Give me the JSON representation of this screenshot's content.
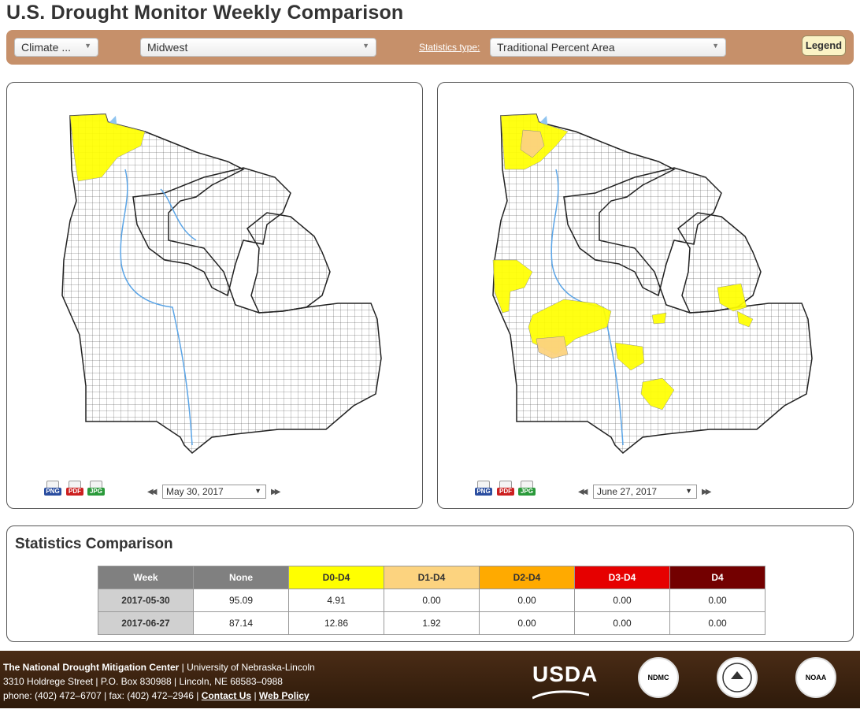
{
  "page": {
    "title": "U.S. Drought Monitor Weekly Comparison"
  },
  "toolbar": {
    "region_type": "Climate ...",
    "region": "Midwest",
    "stats_label": "Statistics type",
    "stats_colon": ":",
    "stats_type": "Traditional Percent Area",
    "legend_label": "Legend"
  },
  "left_map": {
    "date": "May 30, 2017",
    "downloads": [
      "PNG",
      "PDF",
      "JPG"
    ]
  },
  "right_map": {
    "date": "June 27, 2017",
    "downloads": [
      "PNG",
      "PDF",
      "JPG"
    ]
  },
  "colors": {
    "D0": "#ffff00",
    "D1": "#fcd37f",
    "D2": "#ffaa00",
    "D3": "#e60000",
    "D4": "#730000",
    "none": "#808080",
    "water": "#8fc4f0",
    "toolbar": "#c6906a"
  },
  "stats": {
    "title": "Statistics Comparison",
    "headers": [
      "Week",
      "None",
      "D0-D4",
      "D1-D4",
      "D2-D4",
      "D3-D4",
      "D4"
    ],
    "rows": [
      [
        "2017-05-30",
        "95.09",
        "4.91",
        "0.00",
        "0.00",
        "0.00",
        "0.00"
      ],
      [
        "2017-06-27",
        "87.14",
        "12.86",
        "1.92",
        "0.00",
        "0.00",
        "0.00"
      ]
    ]
  },
  "footer": {
    "org": "The National Drought Mitigation Center",
    "org_rest": " | University of Nebraska-Lincoln",
    "address": "3310 Holdrege Street | P.O. Box 830988 | Lincoln, NE 68583–0988",
    "phone": "phone: (402) 472–6707 | fax: (402) 472–2946 | ",
    "contact": "Contact Us",
    "sep": " | ",
    "policy": "Web Policy",
    "usda": "USDA",
    "ndmc": "NDMC",
    "noaa": "NOAA"
  }
}
